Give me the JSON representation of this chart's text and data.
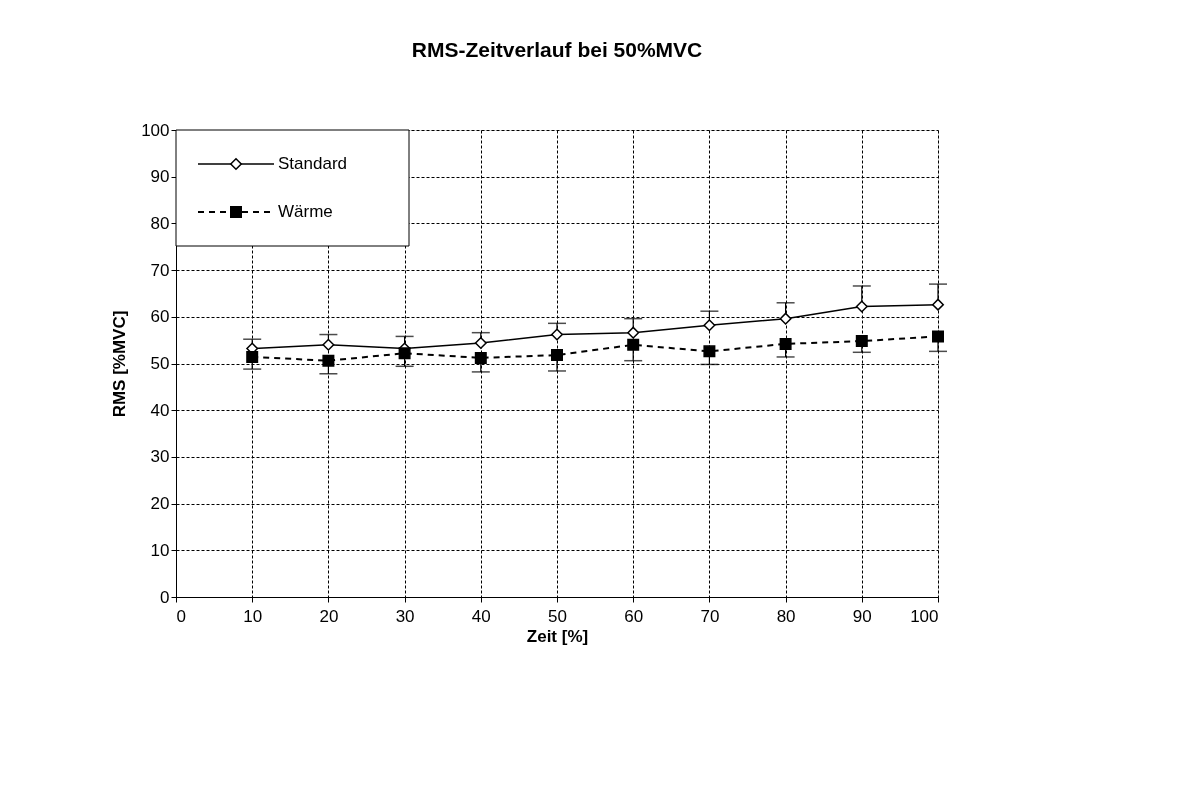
{
  "chart_data": {
    "type": "line",
    "title": "RMS-Zeitverlauf bei 50%MVC",
    "xlabel": "Zeit [%]",
    "ylabel": "RMS [%MVC]",
    "x": [
      10,
      20,
      30,
      40,
      50,
      60,
      70,
      80,
      90,
      100
    ],
    "xlim": [
      0,
      100
    ],
    "xticks": [
      0,
      10,
      20,
      30,
      40,
      50,
      60,
      70,
      80,
      90,
      100
    ],
    "ylim": [
      0,
      100
    ],
    "yticks": [
      0,
      10,
      20,
      30,
      40,
      50,
      60,
      70,
      80,
      90,
      100
    ],
    "grid": true,
    "legend": "top left",
    "series": [
      {
        "name": "Standard",
        "color": "#000000",
        "marker": "diamond",
        "line_style": "solid",
        "values": [
          53.2,
          54.0,
          53.2,
          54.4,
          56.2,
          56.6,
          58.2,
          59.6,
          62.2,
          62.6
        ],
        "errors": [
          [
            53.2,
            55.2
          ],
          [
            54.0,
            56.2
          ],
          [
            53.2,
            55.8
          ],
          [
            54.4,
            56.6
          ],
          [
            56.2,
            58.6
          ],
          [
            56.6,
            59.6
          ],
          [
            58.2,
            61.2
          ],
          [
            59.6,
            63.0
          ],
          [
            62.2,
            66.6
          ],
          [
            62.6,
            67.0
          ]
        ]
      },
      {
        "name": "Wärme",
        "color": "#000000",
        "marker": "square",
        "line_style": "dashed",
        "values": [
          51.4,
          50.6,
          52.2,
          51.2,
          51.8,
          54.0,
          52.6,
          54.2,
          54.8,
          55.8
        ],
        "errors": [
          [
            48.8,
            51.4
          ],
          [
            47.8,
            50.6
          ],
          [
            49.4,
            52.2
          ],
          [
            48.2,
            51.2
          ],
          [
            48.4,
            51.8
          ],
          [
            50.6,
            54.0
          ],
          [
            49.8,
            52.6
          ],
          [
            51.4,
            54.2
          ],
          [
            52.4,
            54.8
          ],
          [
            52.6,
            55.8
          ]
        ]
      }
    ]
  }
}
